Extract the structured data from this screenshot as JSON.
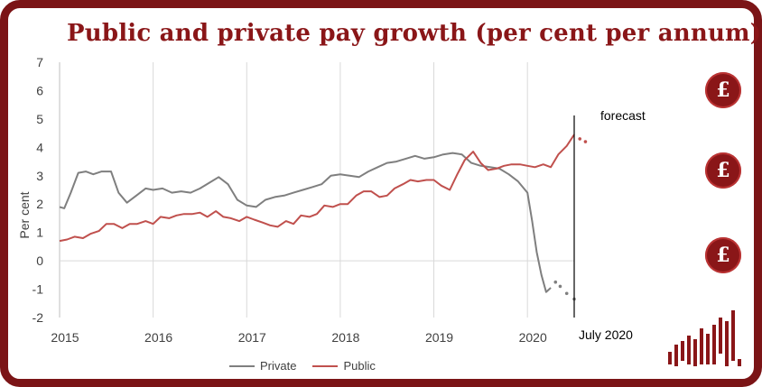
{
  "title": "Public and private pay growth (per cent per annum)",
  "colors": {
    "frame": "#7b1416",
    "title": "#8a1618",
    "private": "#7f7f7f",
    "public": "#c0504d",
    "icon": "#8a1618"
  },
  "icons": [
    "pound-hand-icon",
    "pound-hand-icon",
    "pound-hand-icon",
    "bar-graph-icon"
  ],
  "chart_data": {
    "type": "line",
    "title": "Public and private pay growth (per cent per annum)",
    "ylabel": "Per cent",
    "xlabel": "",
    "ylim": [
      -2,
      7
    ],
    "yticks": [
      -2,
      -1,
      0,
      1,
      2,
      3,
      4,
      5,
      6,
      7
    ],
    "xlim": [
      2015.0,
      2020.5
    ],
    "xticks": [
      "2015",
      "2016",
      "2017",
      "2018",
      "2019",
      "2020"
    ],
    "grid": "vertical",
    "legend_position": "bottom",
    "annotations": {
      "forecast_label": "forecast",
      "date_label": "July 2020",
      "divider_x": 2020.5
    },
    "series": [
      {
        "name": "Private",
        "x": [
          2015.0,
          2015.05,
          2015.12,
          2015.2,
          2015.28,
          2015.36,
          2015.45,
          2015.55,
          2015.63,
          2015.72,
          2015.82,
          2015.92,
          2016.0,
          2016.1,
          2016.2,
          2016.3,
          2016.4,
          2016.5,
          2016.6,
          2016.7,
          2016.8,
          2016.9,
          2017.0,
          2017.1,
          2017.2,
          2017.3,
          2017.4,
          2017.5,
          2017.6,
          2017.7,
          2017.8,
          2017.9,
          2018.0,
          2018.1,
          2018.2,
          2018.3,
          2018.4,
          2018.5,
          2018.6,
          2018.7,
          2018.8,
          2018.9,
          2019.0,
          2019.1,
          2019.2,
          2019.3,
          2019.4,
          2019.5,
          2019.6,
          2019.7,
          2019.8,
          2019.9,
          2020.0,
          2020.05,
          2020.1,
          2020.15,
          2020.2,
          2020.25,
          2020.3,
          2020.35,
          2020.42,
          2020.5
        ],
        "values": [
          1.9,
          1.85,
          2.4,
          3.1,
          3.15,
          3.05,
          3.15,
          3.15,
          2.4,
          2.05,
          2.3,
          2.55,
          2.5,
          2.55,
          2.4,
          2.45,
          2.4,
          2.55,
          2.75,
          2.95,
          2.7,
          2.15,
          1.95,
          1.9,
          2.15,
          2.25,
          2.3,
          2.4,
          2.5,
          2.6,
          2.7,
          3.0,
          3.05,
          3.0,
          2.95,
          3.15,
          3.3,
          3.45,
          3.5,
          3.6,
          3.7,
          3.6,
          3.65,
          3.75,
          3.8,
          3.75,
          3.45,
          3.35,
          3.3,
          3.25,
          3.05,
          2.8,
          2.4,
          1.4,
          0.3,
          -0.5,
          -1.1,
          -0.95,
          -0.75,
          -0.9,
          -1.15,
          -1.35
        ],
        "forecast_from_index": 57
      },
      {
        "name": "Public",
        "x": [
          2015.0,
          2015.08,
          2015.16,
          2015.25,
          2015.33,
          2015.42,
          2015.5,
          2015.58,
          2015.67,
          2015.75,
          2015.83,
          2015.92,
          2016.0,
          2016.08,
          2016.17,
          2016.25,
          2016.33,
          2016.42,
          2016.5,
          2016.58,
          2016.67,
          2016.75,
          2016.83,
          2016.92,
          2017.0,
          2017.08,
          2017.17,
          2017.25,
          2017.33,
          2017.42,
          2017.5,
          2017.58,
          2017.67,
          2017.75,
          2017.83,
          2017.92,
          2018.0,
          2018.08,
          2018.17,
          2018.25,
          2018.33,
          2018.42,
          2018.5,
          2018.58,
          2018.67,
          2018.75,
          2018.83,
          2018.92,
          2019.0,
          2019.08,
          2019.17,
          2019.25,
          2019.33,
          2019.42,
          2019.5,
          2019.58,
          2019.67,
          2019.75,
          2019.83,
          2019.92,
          2020.0,
          2020.08,
          2020.17,
          2020.25,
          2020.33,
          2020.42,
          2020.5
        ],
        "values": [
          0.7,
          0.75,
          0.85,
          0.8,
          0.95,
          1.05,
          1.3,
          1.3,
          1.15,
          1.3,
          1.3,
          1.4,
          1.3,
          1.55,
          1.5,
          1.6,
          1.65,
          1.65,
          1.7,
          1.55,
          1.75,
          1.55,
          1.5,
          1.4,
          1.55,
          1.45,
          1.35,
          1.25,
          1.2,
          1.4,
          1.3,
          1.6,
          1.55,
          1.65,
          1.95,
          1.9,
          2.0,
          2.0,
          2.3,
          2.45,
          2.45,
          2.25,
          2.3,
          2.55,
          2.7,
          2.85,
          2.8,
          2.85,
          2.85,
          2.65,
          2.5,
          3.05,
          3.55,
          3.85,
          3.45,
          3.2,
          3.25,
          3.35,
          3.4,
          3.4,
          3.35,
          3.3,
          3.4,
          3.3,
          3.75,
          4.05,
          4.45
        ],
        "forecast_x": [
          2020.56,
          2020.62
        ],
        "forecast_values": [
          4.3,
          4.2
        ]
      }
    ]
  },
  "legend": {
    "private": "Private",
    "public": "Public"
  }
}
